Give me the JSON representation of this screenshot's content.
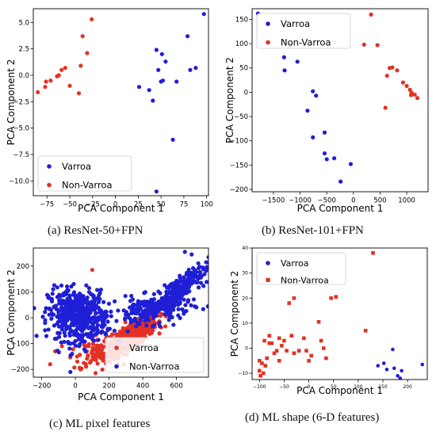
{
  "colors": {
    "varroa": "#1f1fd6",
    "nonvarroa": "#e33124",
    "axis": "#000000",
    "frame": "#000000",
    "legend_border": "#cccccc"
  },
  "captions": {
    "a": "(a) ResNet-50+FPN",
    "b": "(b) ResNet-101+FPN",
    "c": "(c) ML pixel features",
    "d": "(d) ML shape (6-D features)"
  },
  "chart_data": [
    {
      "id": "a",
      "type": "scatter",
      "xlabel": "PCA Component 1",
      "ylabel": "PCA Component 2",
      "xlim": [
        -90,
        102
      ],
      "ylim": [
        -11.4,
        6.3
      ],
      "xticks": [
        -75,
        -50,
        -25,
        0,
        25,
        50,
        75,
        100
      ],
      "yticks": [
        -10.0,
        -7.5,
        -5.0,
        -2.5,
        0.0,
        2.5,
        5.0
      ],
      "xtick_labels": [
        "−75",
        "−50",
        "−25",
        "0",
        "25",
        "50",
        "75",
        "100"
      ],
      "ytick_labels": [
        "−10.0",
        "−7.5",
        "−5.0",
        "−2.5",
        "0.0",
        "2.5",
        "5.0"
      ],
      "legend_loc": "lower-left",
      "series": [
        {
          "name": "Varroa",
          "marker": "circle",
          "color": "#1f1fd6",
          "points": [
            [
              97,
              5.8
            ],
            [
              79,
              3.7
            ],
            [
              45,
              2.4
            ],
            [
              51,
              2.0
            ],
            [
              55,
              1.3
            ],
            [
              88,
              0.7
            ],
            [
              82,
              0.5
            ],
            [
              47,
              0.5
            ],
            [
              52,
              -0.5
            ],
            [
              50,
              -0.6
            ],
            [
              67,
              -0.6
            ],
            [
              26,
              -1.1
            ],
            [
              37,
              -1.4
            ],
            [
              41,
              -2.4
            ],
            [
              63,
              -6.1
            ],
            [
              45,
              -11.0
            ]
          ]
        },
        {
          "name": "Non-Varroa",
          "marker": "circle",
          "color": "#e33124",
          "points": [
            [
              -26,
              5.3
            ],
            [
              -36,
              3.7
            ],
            [
              -31,
              2.1
            ],
            [
              -55,
              0.7
            ],
            [
              -38,
              0.9
            ],
            [
              -59,
              0.5
            ],
            [
              -62,
              0.0
            ],
            [
              -64,
              -0.1
            ],
            [
              -71,
              -0.5
            ],
            [
              -76,
              -0.6
            ],
            [
              -77,
              -1.1
            ],
            [
              -50,
              -1.0
            ],
            [
              -40,
              -1.7
            ],
            [
              -85,
              -1.6
            ]
          ]
        }
      ]
    },
    {
      "id": "b",
      "type": "scatter",
      "xlabel": "PCA Component 1",
      "ylabel": "PCA Component 2",
      "xlim": [
        -1900,
        1400
      ],
      "ylim": [
        -205,
        172
      ],
      "xticks": [
        -1500,
        -1000,
        -500,
        0,
        500,
        1000
      ],
      "yticks": [
        -200,
        -150,
        -100,
        -50,
        0,
        50,
        100,
        150
      ],
      "xtick_labels": [
        "−1500",
        "−1000",
        "−500",
        "0",
        "500",
        "1000"
      ],
      "ytick_labels": [
        "−200",
        "−150",
        "−100",
        "−50",
        "0",
        "50",
        "100",
        "150"
      ],
      "legend_loc": "upper-left",
      "series": [
        {
          "name": "Varroa",
          "marker": "circle",
          "color": "#1f1fd6",
          "points": [
            [
              -1790,
              162
            ],
            [
              -1180,
              97
            ],
            [
              -1300,
              72
            ],
            [
              -1050,
              63
            ],
            [
              -1290,
              45
            ],
            [
              -760,
              2
            ],
            [
              -700,
              -7
            ],
            [
              -860,
              -38
            ],
            [
              -760,
              -93
            ],
            [
              -540,
              -83
            ],
            [
              -540,
              -126
            ],
            [
              -500,
              -138
            ],
            [
              -360,
              -136
            ],
            [
              -50,
              -148
            ],
            [
              -240,
              -184
            ]
          ]
        },
        {
          "name": "Non-Varroa",
          "marker": "circle",
          "color": "#e33124",
          "points": [
            [
              330,
              160
            ],
            [
              200,
              98
            ],
            [
              450,
              97
            ],
            [
              680,
              50
            ],
            [
              730,
              51
            ],
            [
              820,
              45
            ],
            [
              630,
              34
            ],
            [
              930,
              20
            ],
            [
              1000,
              13
            ],
            [
              1060,
              5
            ],
            [
              1090,
              -1
            ],
            [
              1150,
              -5
            ],
            [
              1080,
              -6
            ],
            [
              1200,
              -12
            ],
            [
              600,
              -32
            ]
          ]
        }
      ]
    },
    {
      "id": "c",
      "type": "scatter",
      "xlabel": "PCA Component 1",
      "ylabel": "PCA Component 2",
      "xlim": [
        -250,
        790
      ],
      "ylim": [
        -230,
        270
      ],
      "xticks": [
        -200,
        0,
        200,
        400,
        600
      ],
      "yticks": [
        -200,
        -100,
        0,
        100,
        200
      ],
      "xtick_labels": [
        "−200",
        "0",
        "200",
        "400",
        "600"
      ],
      "ytick_labels": [
        "−200",
        "−100",
        "0",
        "100",
        "200"
      ],
      "legend_loc": "lower-right",
      "series": [
        {
          "name": "Varroa",
          "marker": "circle",
          "color": "#e33124",
          "clusters": [
            {
              "n": 650,
              "cx": 330,
              "cy": -75,
              "sx": 75,
              "sy": 38,
              "rho": 0.82
            },
            {
              "n": 70,
              "cx": 130,
              "cy": -120,
              "sx": 55,
              "sy": 35,
              "rho": 0.4
            }
          ],
          "points": [
            [
              100,
              185
            ],
            [
              -150,
              -180
            ],
            [
              -80,
              -110
            ],
            [
              10,
              -150
            ],
            [
              30,
              -200
            ],
            [
              -120,
              -130
            ],
            [
              50,
              -175
            ]
          ]
        },
        {
          "name": "Non-Varroa",
          "marker": "circle",
          "color": "#1f1fd6",
          "clusters": [
            {
              "n": 480,
              "cx": 10,
              "cy": 10,
              "sx": 85,
              "sy": 50,
              "rho": -0.05
            },
            {
              "n": 200,
              "cx": 460,
              "cy": 30,
              "sx": 110,
              "sy": 28,
              "rho": 0.3
            },
            {
              "n": 240,
              "cx": 610,
              "cy": 110,
              "sx": 90,
              "sy": 45,
              "rho": 0.85
            }
          ],
          "points": [
            [
              -30,
              -210
            ],
            [
              690,
              245
            ],
            [
              650,
              255
            ],
            [
              -180,
              -20
            ],
            [
              180,
              -60
            ],
            [
              260,
              -90
            ],
            [
              700,
              175
            ],
            [
              740,
              175
            ],
            [
              -20,
              -140
            ],
            [
              60,
              -130
            ],
            [
              0,
              -90
            ]
          ]
        }
      ]
    },
    {
      "id": "d",
      "type": "scatter",
      "xlabel": "PCA Component 1",
      "ylabel": "PCA Component 2",
      "xlim": [
        -115,
        240
      ],
      "ylim": [
        -12.5,
        40
      ],
      "xticks": [
        -100,
        -50,
        0,
        50,
        100,
        150,
        200
      ],
      "yticks": [
        -10,
        0,
        10,
        20,
        30,
        40
      ],
      "xtick_labels": [
        "−100",
        "−50",
        "0",
        "50",
        "100",
        "150",
        "200"
      ],
      "ytick_labels": [
        "−10",
        "0",
        "10",
        "20",
        "30",
        "40"
      ],
      "legend_loc": "upper-left",
      "series": [
        {
          "name": "Varroa",
          "marker": "circle",
          "color": "#1f1fd6",
          "points": [
            [
              230,
              -6.5
            ],
            [
              170,
              -0.5
            ],
            [
              140,
              -7
            ],
            [
              152,
              -6
            ],
            [
              158,
              -8.5
            ],
            [
              173,
              -8
            ],
            [
              180,
              -11
            ],
            [
              188,
              -9
            ],
            [
              185,
              -12
            ]
          ]
        },
        {
          "name": "Non-Varroa",
          "marker": "square",
          "color": "#e33124",
          "points": [
            [
              130,
              38
            ],
            [
              55,
              20.5
            ],
            [
              45,
              20
            ],
            [
              -30,
              20
            ],
            [
              -40,
              18
            ],
            [
              20,
              10.5
            ],
            [
              115,
              7
            ],
            [
              -80,
              5
            ],
            [
              -60,
              4
            ],
            [
              -90,
              3
            ],
            [
              -75,
              2
            ],
            [
              -55,
              1
            ],
            [
              25,
              3
            ],
            [
              -20,
              -1
            ],
            [
              -45,
              -1
            ],
            [
              -30,
              -2
            ],
            [
              30,
              0
            ],
            [
              -85,
              -4
            ],
            [
              -70,
              -2
            ],
            [
              -95,
              -6
            ],
            [
              -100,
              -9
            ],
            [
              -98,
              -11
            ],
            [
              -92,
              -10
            ],
            [
              -88,
              -7
            ],
            [
              -60,
              -5
            ],
            [
              0,
              -5
            ],
            [
              -5,
              -1
            ],
            [
              -100,
              -5
            ],
            [
              -65,
              -1
            ],
            [
              35,
              -4
            ],
            [
              -80,
              2
            ],
            [
              -35,
              5
            ],
            [
              -50,
              3
            ],
            [
              5,
              -3
            ],
            [
              -10,
              4
            ]
          ]
        }
      ]
    }
  ]
}
